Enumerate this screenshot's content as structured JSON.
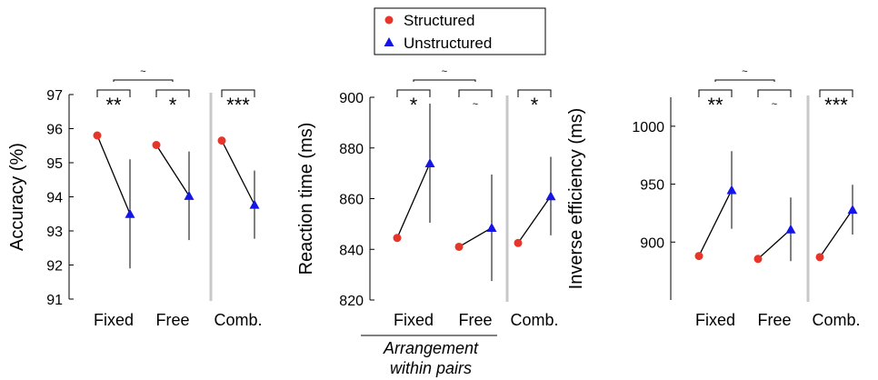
{
  "legend": {
    "entries": [
      {
        "name": "Structured",
        "color": "#e8352a",
        "marker": "circle"
      },
      {
        "name": "Unstructured",
        "color": "#1515e6",
        "marker": "triangle"
      }
    ],
    "placement": "top-center"
  },
  "chart_data": [
    {
      "type": "scatter",
      "ylabel": "Accuracy (%)",
      "ylim": [
        91,
        97
      ],
      "yticks": [
        91,
        92,
        93,
        94,
        95,
        96,
        97
      ],
      "categories": [
        "Fixed",
        "Free",
        "Comb."
      ],
      "x_annotation": "",
      "series": [
        {
          "name": "Structured",
          "values": [
            95.8,
            95.52,
            95.65
          ],
          "err": [
            0,
            0,
            0
          ]
        },
        {
          "name": "Unstructured",
          "values": [
            93.5,
            94.03,
            93.77
          ],
          "err": [
            1.6,
            1.3,
            1.0
          ]
        }
      ],
      "significance": [
        {
          "between": "Fixed",
          "label": "**"
        },
        {
          "between": "Free",
          "label": "*"
        },
        {
          "between": "Comb.",
          "label": "***"
        },
        {
          "between": "Fixed-vs-Free",
          "label": "~"
        }
      ]
    },
    {
      "type": "scatter",
      "ylabel": "Reaction time (ms)",
      "ylim": [
        820,
        900
      ],
      "yticks": [
        820,
        840,
        860,
        880,
        900
      ],
      "categories": [
        "Fixed",
        "Free",
        "Comb."
      ],
      "x_annotation": "Arrangement within pairs",
      "series": [
        {
          "name": "Structured",
          "values": [
            844.5,
            841,
            842.5
          ],
          "err": [
            0,
            0,
            0
          ]
        },
        {
          "name": "Unstructured",
          "values": [
            874,
            848.5,
            861
          ],
          "err": [
            23.5,
            21,
            15.5
          ]
        }
      ],
      "significance": [
        {
          "between": "Fixed",
          "label": "*"
        },
        {
          "between": "Free",
          "label": "~"
        },
        {
          "between": "Comb.",
          "label": "*"
        },
        {
          "between": "Fixed-vs-Free",
          "label": "~"
        }
      ]
    },
    {
      "type": "scatter",
      "ylabel": "Inverse efficiency (ms)",
      "ylim": [
        850,
        1025
      ],
      "yticks": [
        900,
        950,
        1000
      ],
      "categories": [
        "Fixed",
        "Free",
        "Comb."
      ],
      "x_annotation": "",
      "series": [
        {
          "name": "Structured",
          "values": [
            888,
            885.5,
            887
          ],
          "err": [
            0,
            0,
            0
          ]
        },
        {
          "name": "Unstructured",
          "values": [
            945,
            911,
            928
          ],
          "err": [
            33.5,
            27.5,
            21.5
          ]
        }
      ],
      "significance": [
        {
          "between": "Fixed",
          "label": "**"
        },
        {
          "between": "Free",
          "label": "~"
        },
        {
          "between": "Comb.",
          "label": "***"
        },
        {
          "between": "Fixed-vs-Free",
          "label": "~"
        }
      ]
    }
  ]
}
